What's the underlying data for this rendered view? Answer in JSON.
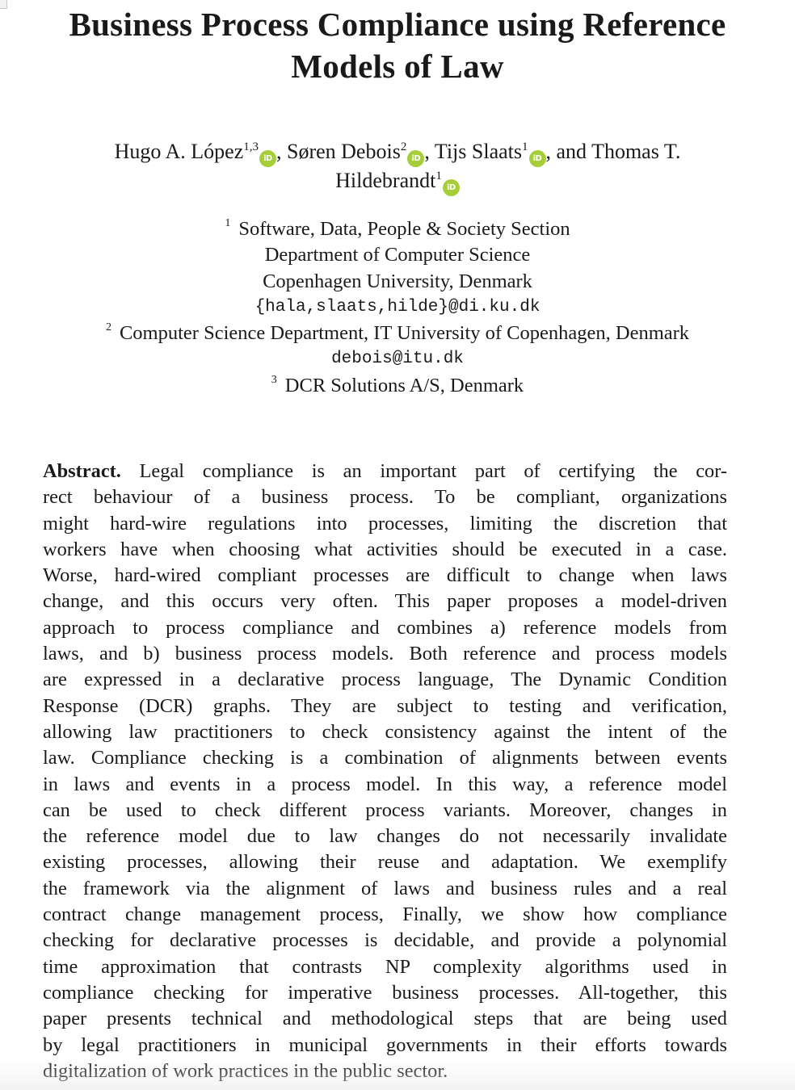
{
  "paper": {
    "title_lines": [
      "Business Process Compliance using Reference",
      "Models of Law"
    ],
    "authors": {
      "a1_name": "Hugo A. López",
      "a1_sup": "1,3",
      "sep1": ", ",
      "a2_name": "Søren Debois",
      "a2_sup": "2",
      "sep2": ", ",
      "a3_name": "Tijs Slaats",
      "a3_sup": "1",
      "sep3": ", and ",
      "a4_name_part1": "Thomas T.",
      "a4_name_part2": "Hildebrandt",
      "a4_sup": "1",
      "orcid_label": "iD"
    },
    "affiliations": {
      "aff1_marker": "1",
      "aff1_line1": "Software, Data, People & Society Section",
      "aff1_line2": "Department of Computer Science",
      "aff1_line3": "Copenhagen University, Denmark",
      "aff1_email": "{hala,slaats,hilde}@di.ku.dk",
      "aff2_marker": "2",
      "aff2_line1": "Computer Science Department, IT University of Copenhagen, Denmark",
      "aff2_email": "debois@itu.dk",
      "aff3_marker": "3",
      "aff3_line1": "DCR Solutions A/S, Denmark"
    },
    "abstract": {
      "heading": "Abstract.",
      "lines": [
        "Legal compliance is an important part of certifying the cor-",
        "rect behaviour of a business process. To be compliant, organizations",
        "might hard-wire regulations into processes, limiting the discretion that",
        "workers have when choosing what activities should be executed in a case.",
        "Worse, hard-wired compliant processes are difficult to change when laws",
        "change, and this occurs very often. This paper proposes a model-driven",
        "approach to process compliance and combines a) reference models from",
        "laws, and b) business process models. Both reference and process models",
        "are expressed in a declarative process language, The Dynamic Condition",
        "Response (DCR) graphs. They are subject to testing and verification,",
        "allowing law practitioners to check consistency against the intent of the",
        "law. Compliance checking is a combination of alignments between events",
        "in laws and events in a process model. In this way, a reference model",
        "can be used to check different process variants. Moreover, changes in",
        "the reference model due to law changes do not necessarily invalidate",
        "existing processes, allowing their reuse and adaptation. We exemplify",
        "the framework via the alignment of laws and business rules and a real",
        "contract change management process, Finally, we show how compliance",
        "checking for declarative processes is decidable, and provide a polynomial",
        "time approximation that contrasts NP complexity algorithms used in",
        "compliance checking for imperative business processes. All-together, this",
        "paper presents technical and methodological steps that are being used",
        "by legal practitioners in municipal governments in their efforts towards",
        "digitalization of work practices in the public sector."
      ]
    }
  }
}
